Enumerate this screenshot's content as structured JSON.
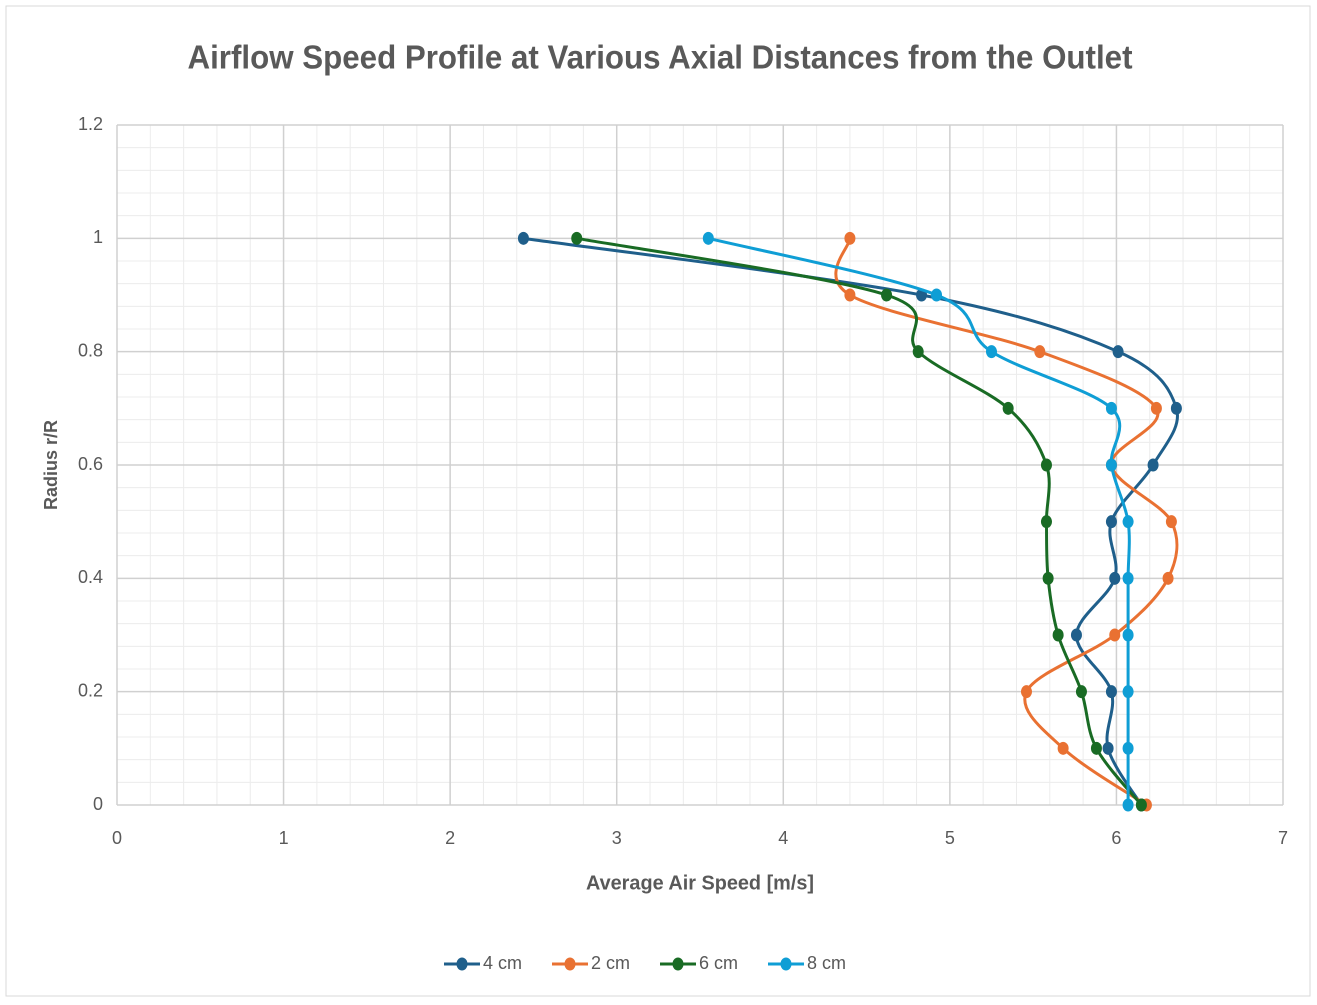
{
  "chart_data": {
    "type": "scatter",
    "title": "Airflow Speed Profile at Various Axial Distances from the Outlet",
    "x_label": "Average Air Speed  [m/s]",
    "y_label": "Radius  r/R",
    "series": [
      {
        "name": "4 cm",
        "color": "#1f5f8b",
        "x": [
          2.44,
          4.83,
          6.01,
          6.36,
          6.22,
          5.97,
          5.99,
          5.76,
          5.97,
          5.95,
          6.15
        ],
        "y": [
          1,
          0.9,
          0.8,
          0.7,
          0.6,
          0.5,
          0.4,
          0.3,
          0.2,
          0.1,
          0
        ]
      },
      {
        "name": "2 cm",
        "color": "#e97132",
        "x": [
          4.4,
          4.4,
          5.54,
          6.24,
          5.97,
          6.33,
          6.31,
          5.99,
          5.46,
          5.68,
          6.18
        ],
        "y": [
          1,
          0.9,
          0.8,
          0.7,
          0.6,
          0.5,
          0.4,
          0.3,
          0.2,
          0.1,
          0
        ]
      },
      {
        "name": "6 cm",
        "color": "#196b24",
        "x": [
          2.76,
          4.62,
          4.81,
          5.35,
          5.58,
          5.58,
          5.59,
          5.65,
          5.79,
          5.88,
          6.15
        ],
        "y": [
          1,
          0.9,
          0.8,
          0.7,
          0.6,
          0.5,
          0.4,
          0.3,
          0.2,
          0.1,
          0
        ]
      },
      {
        "name": "8 cm",
        "color": "#0f9ed5",
        "x": [
          3.55,
          4.92,
          5.25,
          5.97,
          5.97,
          6.07,
          6.07,
          6.07,
          6.07,
          6.07,
          6.07
        ],
        "y": [
          1,
          0.9,
          0.8,
          0.7,
          0.6,
          0.5,
          0.4,
          0.3,
          0.2,
          0.1,
          0
        ]
      }
    ],
    "xlim": [
      0,
      7
    ],
    "xticks": [
      0,
      1,
      2,
      3,
      4,
      5,
      6,
      7
    ],
    "ylim": [
      0,
      1.2
    ],
    "yticks": [
      0,
      0.2,
      0.4,
      0.6,
      0.8,
      1,
      1.2
    ],
    "grid": true,
    "minor_grid": true,
    "smooth": true,
    "legend": "bottom"
  }
}
